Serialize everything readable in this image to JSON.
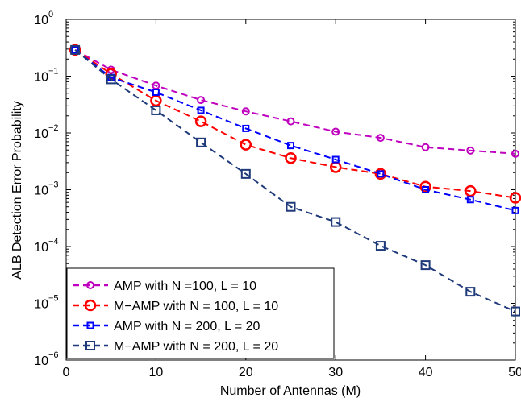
{
  "chart_data": {
    "type": "line",
    "title": "",
    "xlabel": "Number of Antennas (M)",
    "ylabel": "ALB Detection Error Probability",
    "xlim": [
      0,
      50
    ],
    "ylim": [
      1e-06,
      1
    ],
    "yscale": "log",
    "grid": false,
    "legend_position": "bottom-left",
    "x_ticks": [
      0,
      10,
      20,
      30,
      40,
      50
    ],
    "x_tick_labels": [
      "0",
      "10",
      "20",
      "30",
      "40",
      "50"
    ],
    "y_ticks": [
      1e-06,
      1e-05,
      0.0001,
      0.001,
      0.01,
      0.1,
      1
    ],
    "y_tick_labels": [
      {
        "base": "10",
        "exp": "−6"
      },
      {
        "base": "10",
        "exp": "−5"
      },
      {
        "base": "10",
        "exp": "−4"
      },
      {
        "base": "10",
        "exp": "−3"
      },
      {
        "base": "10",
        "exp": "−2"
      },
      {
        "base": "10",
        "exp": "−1"
      },
      {
        "base": "10",
        "exp": "0"
      }
    ],
    "series": [
      {
        "name": "AMP with N =100, L = 10",
        "color": "#bf00bf",
        "marker": "circle-small",
        "x": [
          1,
          5,
          10,
          15,
          20,
          25,
          30,
          35,
          40,
          45,
          50
        ],
        "y": [
          0.29,
          0.13,
          0.068,
          0.038,
          0.024,
          0.016,
          0.0105,
          0.0082,
          0.0056,
          0.0049,
          0.0043
        ]
      },
      {
        "name": "M−AMP with N = 100, L = 10",
        "color": "#ff0000",
        "marker": "circle-large",
        "x": [
          1,
          5,
          10,
          15,
          20,
          25,
          30,
          35,
          40,
          45,
          50
        ],
        "y": [
          0.29,
          0.11,
          0.037,
          0.016,
          0.0062,
          0.0036,
          0.0025,
          0.0019,
          0.00113,
          0.00095,
          0.00072
        ]
      },
      {
        "name": "AMP with N = 200, L = 20",
        "color": "#0000ff",
        "marker": "square-small",
        "x": [
          1,
          5,
          10,
          15,
          20,
          25,
          30,
          35,
          40,
          45,
          50
        ],
        "y": [
          0.29,
          0.095,
          0.052,
          0.025,
          0.012,
          0.006,
          0.0034,
          0.0019,
          0.001,
          0.00067,
          0.00043
        ]
      },
      {
        "name": "M−AMP with N = 200, L = 20",
        "color": "#1f3a7a",
        "marker": "square-large",
        "x": [
          1,
          5,
          10,
          15,
          20,
          25,
          30,
          35,
          40,
          45,
          50
        ],
        "y": [
          0.29,
          0.088,
          0.025,
          0.0068,
          0.0019,
          0.0005,
          0.00027,
          0.000103,
          4.7e-05,
          1.6e-05,
          7.2e-06
        ]
      }
    ]
  }
}
